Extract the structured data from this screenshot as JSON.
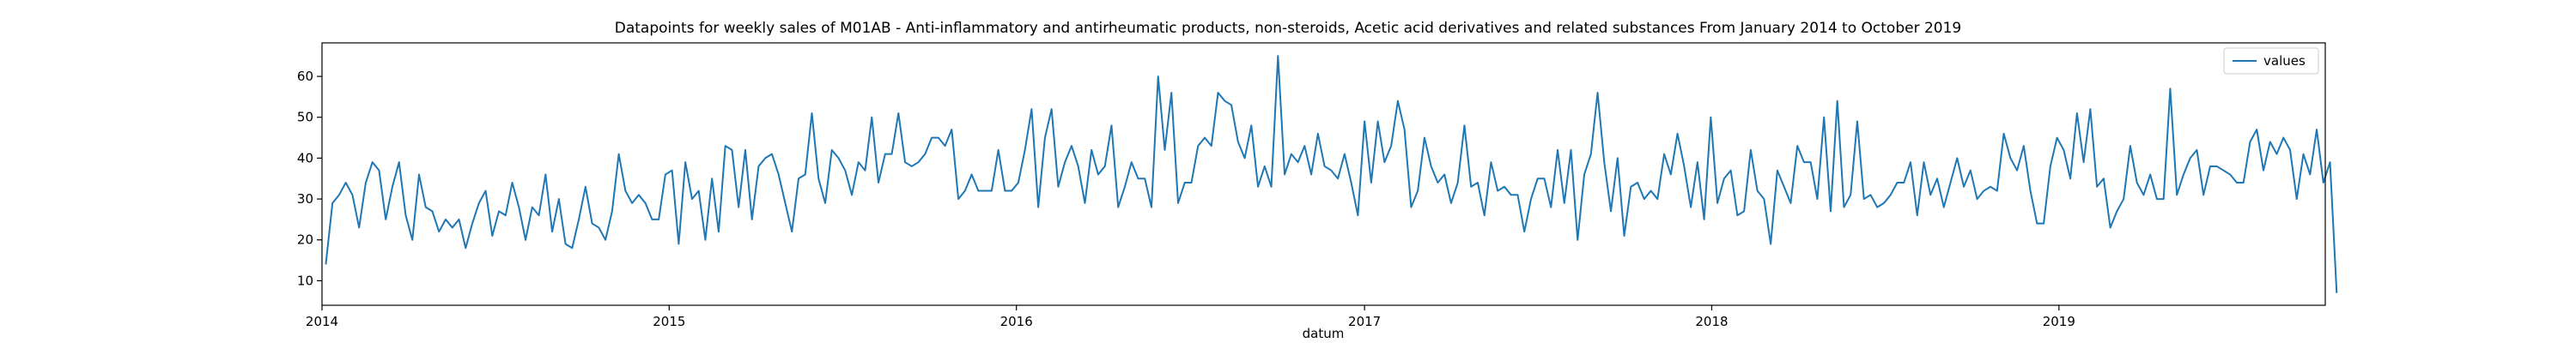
{
  "chart_data": {
    "type": "line",
    "title": "Datapoints for weekly sales of M01AB - Anti-inflammatory and antirheumatic products, non-steroids, Acetic acid derivatives and related substances From January 2014 to October 2019",
    "xlabel": "datum",
    "ylabel": "",
    "x_start": "2014-01-05",
    "x_step_days": 7,
    "xlim": [
      "2014-01-01",
      "2019-10-08"
    ],
    "ylim": [
      4.0,
      68.2
    ],
    "xticks": [
      {
        "date": "2014-01-01",
        "label": "2014"
      },
      {
        "date": "2015-01-01",
        "label": "2015"
      },
      {
        "date": "2016-01-01",
        "label": "2016"
      },
      {
        "date": "2017-01-01",
        "label": "2017"
      },
      {
        "date": "2018-01-01",
        "label": "2018"
      },
      {
        "date": "2019-01-01",
        "label": "2019"
      }
    ],
    "yticks": [
      10,
      20,
      30,
      40,
      50,
      60
    ],
    "grid": false,
    "legend": {
      "position": "top-right"
    },
    "series": [
      {
        "name": "values",
        "color": "#1f77b4",
        "values": [
          14,
          29,
          31,
          34,
          31,
          23,
          34,
          39,
          37,
          25,
          33,
          39,
          26,
          20,
          36,
          28,
          27,
          22,
          25,
          23,
          25,
          18,
          24,
          29,
          32,
          21,
          27,
          26,
          34,
          28,
          20,
          28,
          26,
          36,
          22,
          30,
          19,
          18,
          25,
          33,
          24,
          23,
          20,
          27,
          41,
          32,
          29,
          31,
          29,
          25,
          25,
          36,
          37,
          19,
          39,
          30,
          32,
          20,
          35,
          22,
          43,
          42,
          28,
          42,
          25,
          38,
          40,
          41,
          36,
          29,
          22,
          35,
          36,
          51,
          35,
          29,
          42,
          40,
          37,
          31,
          39,
          37,
          50,
          34,
          41,
          41,
          51,
          39,
          38,
          39,
          41,
          45,
          45,
          43,
          47,
          30,
          32,
          36,
          32,
          32,
          32,
          42,
          32,
          32,
          34,
          42,
          52,
          28,
          45,
          52,
          33,
          39,
          43,
          38,
          29,
          42,
          36,
          38,
          48,
          28,
          33,
          39,
          35,
          35,
          28,
          60,
          42,
          56,
          29,
          34,
          34,
          43,
          45,
          43,
          56,
          54,
          53,
          44,
          40,
          48,
          33,
          38,
          33,
          65,
          36,
          41,
          39,
          43,
          36,
          46,
          38,
          37,
          35,
          41,
          34,
          26,
          49,
          34,
          49,
          39,
          43,
          54,
          47,
          28,
          32,
          45,
          38,
          34,
          36,
          29,
          34,
          48,
          33,
          34,
          26,
          39,
          32,
          33,
          31,
          31,
          22,
          30,
          35,
          35,
          28,
          42,
          29,
          42,
          20,
          36,
          41,
          56,
          39,
          27,
          40,
          21,
          33,
          34,
          30,
          32,
          30,
          41,
          36,
          46,
          38,
          28,
          39,
          25,
          50,
          29,
          35,
          37,
          26,
          27,
          42,
          32,
          30,
          19,
          37,
          33,
          29,
          43,
          39,
          39,
          30,
          50,
          27,
          54,
          28,
          31,
          49,
          30,
          31,
          28,
          29,
          31,
          34,
          34,
          39,
          26,
          39,
          31,
          35,
          28,
          34,
          40,
          33,
          37,
          30,
          32,
          33,
          32,
          46,
          40,
          37,
          43,
          32,
          24,
          24,
          38,
          45,
          42,
          35,
          51,
          39,
          52,
          33,
          35,
          23,
          27,
          30,
          43,
          34,
          31,
          36,
          30,
          30,
          57,
          31,
          36,
          40,
          42,
          31,
          38,
          38,
          37,
          36,
          34,
          34,
          44,
          47,
          37,
          44,
          41,
          45,
          42,
          30,
          41,
          36,
          47,
          34,
          39,
          7
        ]
      }
    ]
  }
}
